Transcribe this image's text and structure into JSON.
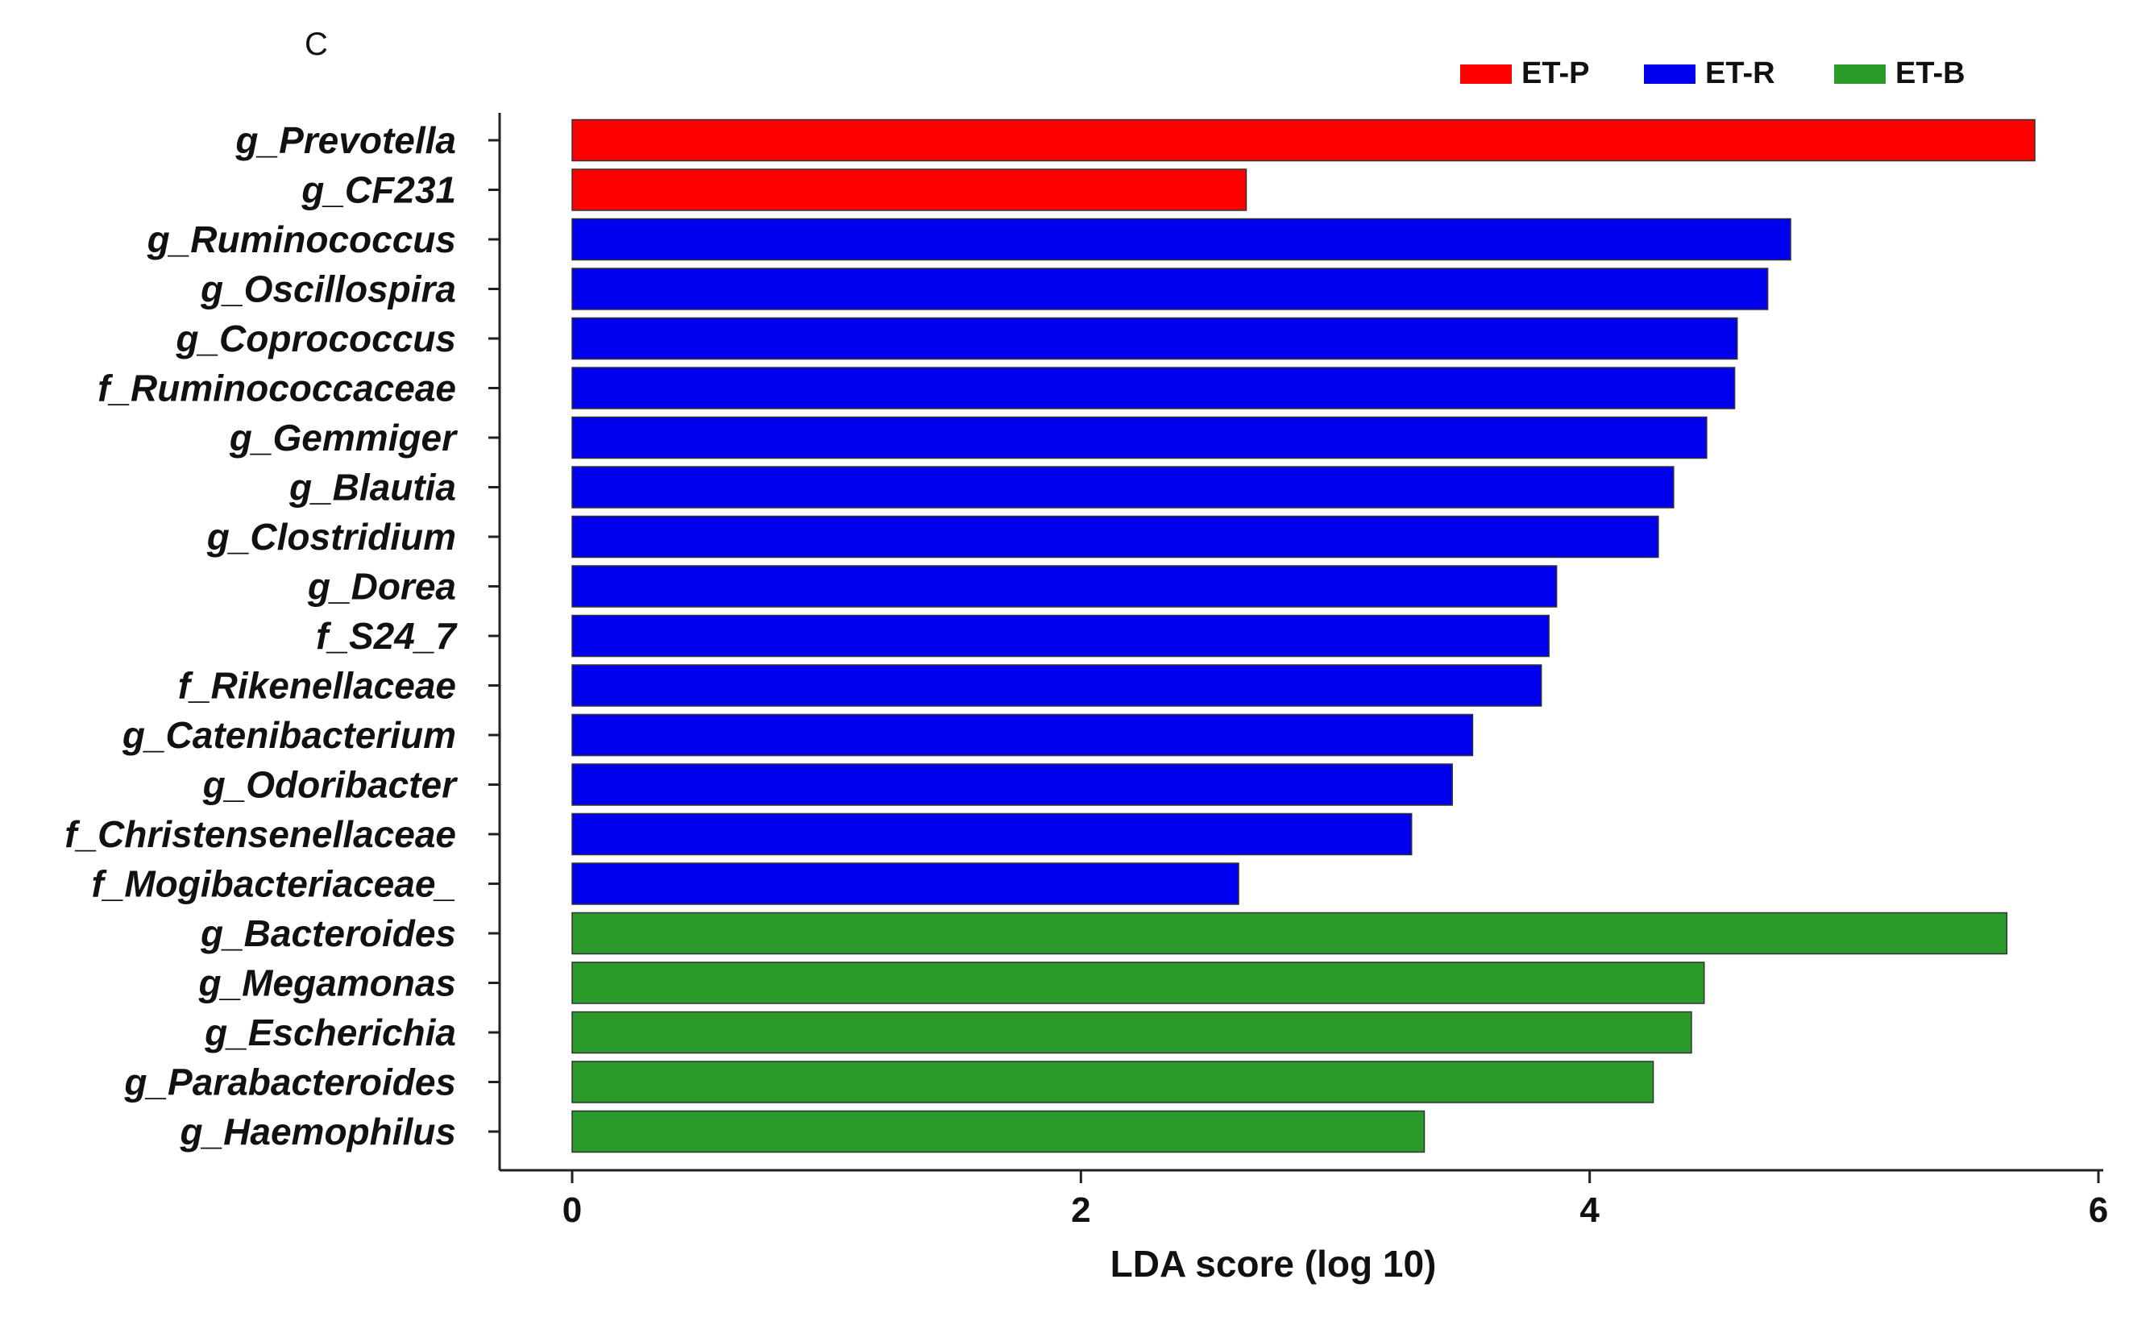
{
  "panel_label": "C",
  "chart_data": {
    "type": "bar",
    "orientation": "horizontal",
    "title": "",
    "xlabel": "LDA score (log 10)",
    "ylabel": "",
    "xlim": [
      0,
      6
    ],
    "xticks": [
      "0",
      "2",
      "4",
      "6"
    ],
    "xtick_values": [
      0,
      2,
      4,
      6
    ],
    "legend": [
      {
        "name": "ET-P",
        "color": "#ff0000"
      },
      {
        "name": "ET-R",
        "color": "#0000ee"
      },
      {
        "name": "ET-B",
        "color": "#2a9a2a"
      }
    ],
    "legend_placement": "top-right",
    "bars": [
      {
        "label": "g_Prevotella",
        "value": 5.75,
        "group": "ET-P"
      },
      {
        "label": "g_CF231",
        "value": 2.65,
        "group": "ET-P"
      },
      {
        "label": "g_Ruminococcus",
        "value": 4.79,
        "group": "ET-R"
      },
      {
        "label": "g_Oscillospira",
        "value": 4.7,
        "group": "ET-R"
      },
      {
        "label": "g_Coprococcus",
        "value": 4.58,
        "group": "ET-R"
      },
      {
        "label": "f_Ruminococcaceae",
        "value": 4.57,
        "group": "ET-R"
      },
      {
        "label": "g_Gemmiger",
        "value": 4.46,
        "group": "ET-R"
      },
      {
        "label": "g_Blautia",
        "value": 4.33,
        "group": "ET-R"
      },
      {
        "label": "g_Clostridium",
        "value": 4.27,
        "group": "ET-R"
      },
      {
        "label": "g_Dorea",
        "value": 3.87,
        "group": "ET-R"
      },
      {
        "label": "f_S24_7",
        "value": 3.84,
        "group": "ET-R"
      },
      {
        "label": "f_Rikenellaceae",
        "value": 3.81,
        "group": "ET-R"
      },
      {
        "label": "g_Catenibacterium",
        "value": 3.54,
        "group": "ET-R"
      },
      {
        "label": "g_Odoribacter",
        "value": 3.46,
        "group": "ET-R"
      },
      {
        "label": "f_Christensenellaceae",
        "value": 3.3,
        "group": "ET-R"
      },
      {
        "label": "f_Mogibacteriaceae_",
        "value": 2.62,
        "group": "ET-R"
      },
      {
        "label": "g_Bacteroides",
        "value": 5.64,
        "group": "ET-B"
      },
      {
        "label": "g_Megamonas",
        "value": 4.45,
        "group": "ET-B"
      },
      {
        "label": "g_Escherichia",
        "value": 4.4,
        "group": "ET-B"
      },
      {
        "label": "g_Parabacteroides",
        "value": 4.25,
        "group": "ET-B"
      },
      {
        "label": "g_Haemophilus",
        "value": 3.35,
        "group": "ET-B"
      }
    ]
  }
}
